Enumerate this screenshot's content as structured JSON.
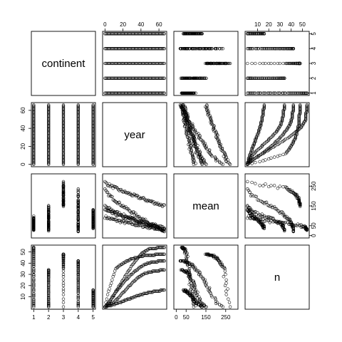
{
  "chart_data": {
    "type": "scatter",
    "title": "",
    "variables": [
      {
        "name": "continent",
        "range": [
          1,
          5
        ],
        "ticks": [
          1,
          2,
          3,
          4,
          5
        ]
      },
      {
        "name": "year",
        "range": [
          0,
          66
        ],
        "ticks": [
          0,
          20,
          40,
          60
        ]
      },
      {
        "name": "mean",
        "range": [
          0,
          300
        ],
        "ticks": [
          0,
          50,
          150,
          250
        ]
      },
      {
        "name": "n",
        "range": [
          1,
          54
        ],
        "ticks": [
          10,
          20,
          30,
          40,
          50
        ]
      }
    ],
    "axis_placement": {
      "top": [
        1,
        3
      ],
      "right": [
        0,
        2
      ],
      "bottom": [
        0,
        2
      ],
      "left": [
        1,
        3
      ]
    },
    "ticks_top": {
      "1": [
        0,
        20,
        40,
        60
      ],
      "3": [
        10,
        20,
        30,
        40,
        50
      ]
    },
    "ticks_right": {
      "0": [
        1,
        2,
        3,
        4,
        5
      ],
      "2": [
        0,
        50,
        150,
        250
      ]
    },
    "ticks_bottom": {
      "0": [
        1,
        2,
        3,
        4,
        5
      ],
      "2": [
        0,
        50,
        150,
        250
      ]
    },
    "ticks_left": {
      "1": [
        0,
        20,
        40,
        60
      ],
      "3": [
        10,
        20,
        30,
        40,
        50
      ]
    },
    "groups": [
      {
        "continent": 1,
        "n_max": 54,
        "mean_start": 95,
        "mean_end": 28,
        "n_curve": [
          [
            0,
            1
          ],
          [
            5,
            6
          ],
          [
            10,
            12
          ],
          [
            20,
            25
          ],
          [
            30,
            38
          ],
          [
            40,
            48
          ],
          [
            50,
            53
          ],
          [
            66,
            54
          ]
        ]
      },
      {
        "continent": 2,
        "n_max": 34,
        "mean_start": 150,
        "mean_end": 28,
        "n_curve": [
          [
            0,
            1
          ],
          [
            8,
            4
          ],
          [
            15,
            9
          ],
          [
            25,
            18
          ],
          [
            35,
            26
          ],
          [
            45,
            31
          ],
          [
            55,
            33
          ],
          [
            66,
            34
          ]
        ]
      },
      {
        "continent": 3,
        "n_max": 48,
        "mean_start": 270,
        "mean_end": 150,
        "n_curve": [
          [
            0,
            1
          ],
          [
            3,
            12
          ],
          [
            8,
            25
          ],
          [
            12,
            35
          ],
          [
            20,
            40
          ],
          [
            30,
            44
          ],
          [
            45,
            47
          ],
          [
            66,
            48
          ]
        ]
      },
      {
        "continent": 4,
        "n_max": 42,
        "mean_start": 230,
        "mean_end": 20,
        "n_curve": [
          [
            0,
            1
          ],
          [
            5,
            5
          ],
          [
            12,
            14
          ],
          [
            22,
            24
          ],
          [
            32,
            32
          ],
          [
            42,
            38
          ],
          [
            52,
            41
          ],
          [
            66,
            42
          ]
        ]
      },
      {
        "continent": 5,
        "n_max": 16,
        "mean_start": 130,
        "mean_end": 40,
        "n_curve": [
          [
            0,
            1
          ],
          [
            10,
            3
          ],
          [
            20,
            6
          ],
          [
            30,
            9
          ],
          [
            40,
            12
          ],
          [
            50,
            14
          ],
          [
            58,
            15
          ],
          [
            66,
            16
          ]
        ]
      }
    ]
  }
}
